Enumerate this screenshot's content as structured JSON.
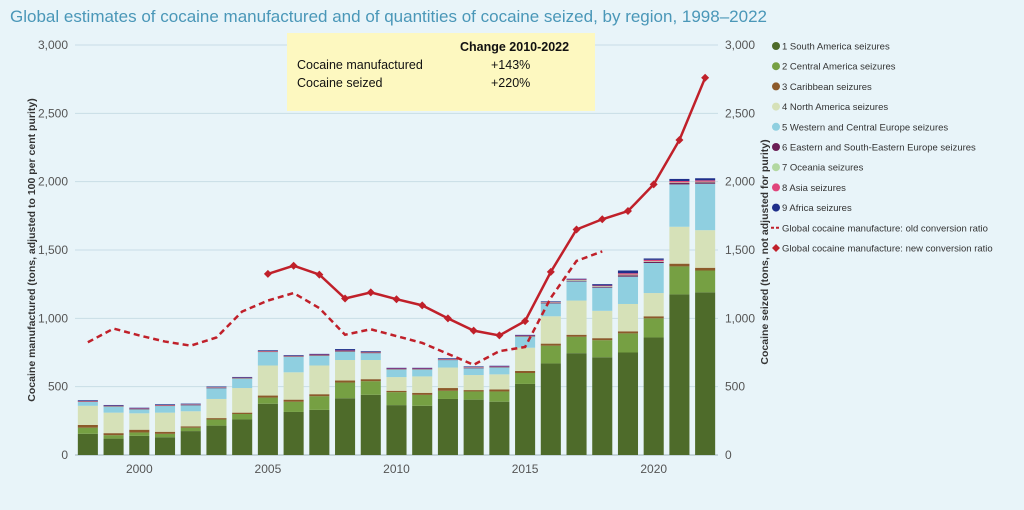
{
  "chart_data": {
    "type": "bar",
    "title": "Global estimates of cocaine manufactured and of quantities of cocaine seized, by region, 1998–2022",
    "ylabel_left": "Cocaine manufactured (tons, adjusted to 100 per cent purity)",
    "ylabel_right": "Cocaine seized (tons, not adjusted for purity)",
    "ylim": [
      0,
      3000
    ],
    "yticks": [
      "0",
      "500",
      "1,000",
      "1,500",
      "2,000",
      "2,500",
      "3,000"
    ],
    "xticks": [
      "2000",
      "2005",
      "2010",
      "2015",
      "2020"
    ],
    "x": [
      1998,
      1999,
      2000,
      2001,
      2002,
      2003,
      2004,
      2005,
      2006,
      2007,
      2008,
      2009,
      2010,
      2011,
      2012,
      2013,
      2014,
      2015,
      2016,
      2017,
      2018,
      2019,
      2020,
      2021,
      2022
    ],
    "stack_series": [
      {
        "name": "1 South America seizures",
        "color": "#4e6b2a",
        "values": [
          155,
          120,
          140,
          130,
          175,
          215,
          260,
          375,
          315,
          330,
          415,
          440,
          365,
          360,
          410,
          405,
          390,
          520,
          670,
          745,
          715,
          750,
          860,
          1175,
          1190
        ]
      },
      {
        "name": "2 Central America seizures",
        "color": "#76a043",
        "values": [
          45,
          25,
          25,
          25,
          25,
          45,
          40,
          45,
          75,
          100,
          115,
          100,
          95,
          80,
          60,
          60,
          75,
          80,
          130,
          120,
          125,
          140,
          140,
          205,
          160
        ]
      },
      {
        "name": "3 Caribbean seizures",
        "color": "#8c5a2a",
        "values": [
          20,
          15,
          20,
          15,
          10,
          10,
          10,
          15,
          15,
          15,
          15,
          15,
          10,
          15,
          20,
          10,
          15,
          15,
          15,
          15,
          15,
          15,
          15,
          20,
          20
        ]
      },
      {
        "name": "4 North America seizures",
        "color": "#d6e1b8",
        "values": [
          140,
          150,
          120,
          140,
          110,
          140,
          180,
          220,
          200,
          210,
          150,
          140,
          100,
          120,
          150,
          110,
          110,
          170,
          200,
          250,
          200,
          200,
          170,
          270,
          275
        ]
      },
      {
        "name": "5 Western and Central Europe seizures",
        "color": "#8fcfe0",
        "values": [
          30,
          45,
          30,
          50,
          45,
          80,
          70,
          100,
          115,
          70,
          60,
          50,
          55,
          50,
          55,
          50,
          50,
          80,
          95,
          140,
          170,
          200,
          220,
          310,
          340
        ]
      },
      {
        "name": "6 Eastern and South-Eastern Europe seizures",
        "color": "#6b1f55",
        "values": [
          2,
          2,
          2,
          2,
          2,
          2,
          2,
          2,
          2,
          5,
          5,
          5,
          3,
          3,
          3,
          3,
          3,
          3,
          3,
          5,
          5,
          10,
          8,
          10,
          10
        ]
      },
      {
        "name": "7 Oceania seizures",
        "color": "#b2d8a0",
        "values": [
          2,
          2,
          2,
          2,
          2,
          2,
          2,
          2,
          2,
          3,
          3,
          3,
          3,
          3,
          3,
          3,
          3,
          3,
          3,
          5,
          5,
          5,
          5,
          5,
          5
        ]
      },
      {
        "name": "8 Asia seizures",
        "color": "#e0457b",
        "values": [
          2,
          2,
          2,
          2,
          2,
          2,
          2,
          2,
          2,
          2,
          2,
          2,
          2,
          2,
          2,
          2,
          2,
          3,
          3,
          5,
          5,
          10,
          10,
          10,
          10
        ]
      },
      {
        "name": "9 Africa seizures",
        "color": "#1f2f8a",
        "values": [
          5,
          5,
          5,
          5,
          5,
          5,
          5,
          5,
          5,
          5,
          10,
          5,
          5,
          5,
          5,
          5,
          5,
          5,
          5,
          5,
          10,
          20,
          10,
          15,
          15
        ]
      }
    ],
    "line_series": [
      {
        "name": "Global cocaine manufacture: old conversion ratio",
        "color": "#c0202a",
        "style": "dashed",
        "x": [
          1998,
          1999,
          2000,
          2001,
          2002,
          2003,
          2004,
          2005,
          2006,
          2007,
          2008,
          2009,
          2010,
          2011,
          2012,
          2013,
          2014,
          2015,
          2016,
          2017,
          2018
        ],
        "values": [
          825,
          925,
          875,
          830,
          800,
          860,
          1050,
          1130,
          1185,
          1075,
          880,
          920,
          870,
          820,
          740,
          660,
          760,
          790,
          1150,
          1420,
          1490
        ]
      },
      {
        "name": "Global cocaine manufacture: new conversion ratio",
        "color": "#c0202a",
        "style": "solid",
        "x": [
          2005,
          2006,
          2007,
          2008,
          2009,
          2010,
          2011,
          2012,
          2013,
          2014,
          2015,
          2016,
          2017,
          2018,
          2019,
          2020,
          2021,
          2022
        ],
        "values": [
          1325,
          1385,
          1320,
          1145,
          1190,
          1140,
          1095,
          1000,
          910,
          875,
          980,
          1340,
          1650,
          1725,
          1785,
          1980,
          2305,
          2760
        ]
      }
    ],
    "annotation": {
      "header": "Change 2010-2022",
      "rows": [
        {
          "label": "Cocaine  manufactured",
          "value": "+143%"
        },
        {
          "label": "Cocaine seized",
          "value": "+220%"
        }
      ]
    },
    "legend_placement": "right",
    "grid": true
  }
}
